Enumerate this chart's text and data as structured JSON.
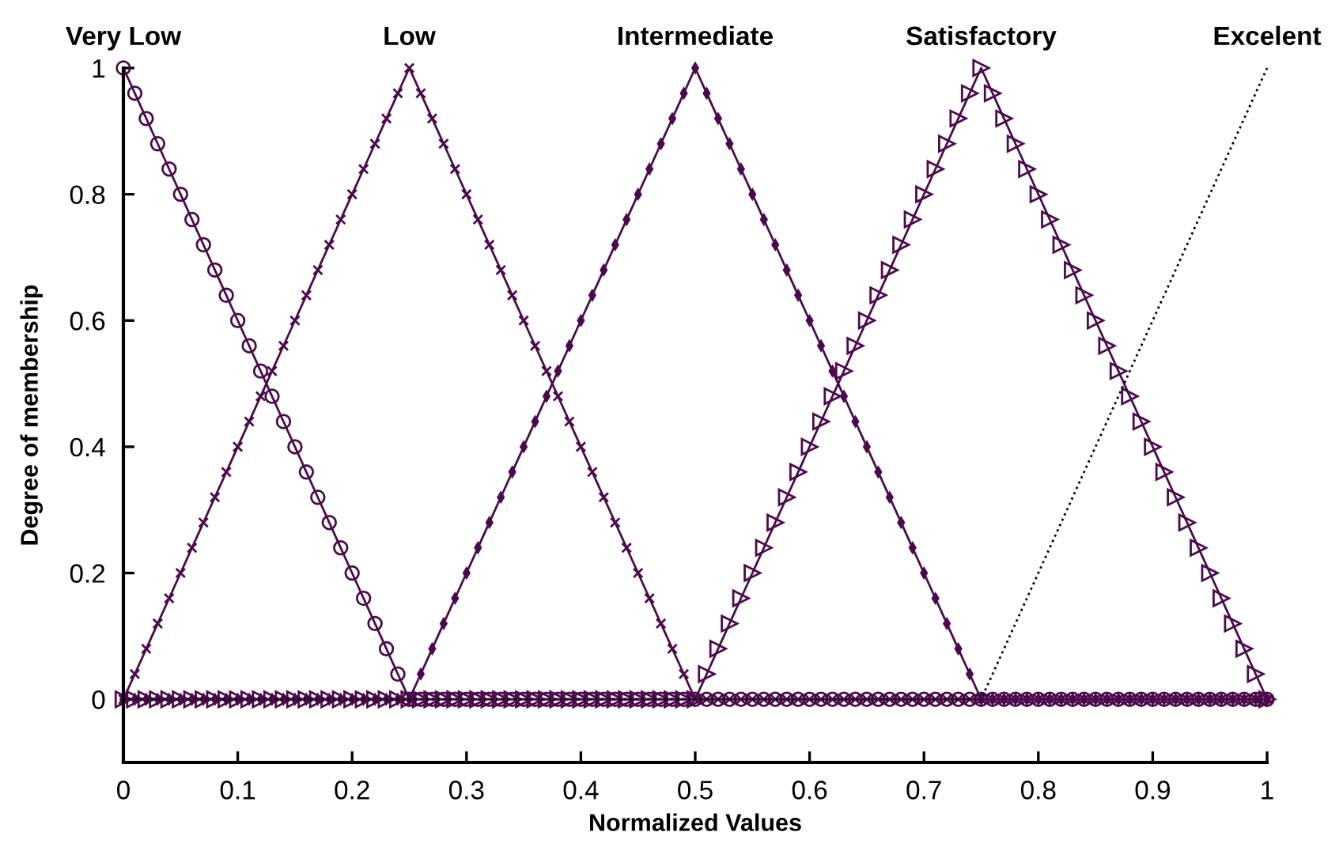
{
  "chart_data": {
    "type": "line",
    "xlabel": "Normalized Values",
    "ylabel": "Degree of membership",
    "x": [
      0,
      0.01,
      0.02,
      0.03,
      0.04,
      0.05,
      0.06,
      0.07,
      0.08,
      0.09,
      0.1,
      0.11,
      0.12,
      0.13,
      0.14,
      0.15,
      0.16,
      0.17,
      0.18,
      0.19,
      0.2,
      0.21,
      0.22,
      0.23,
      0.24,
      0.25,
      0.26,
      0.27,
      0.28,
      0.29,
      0.3,
      0.31,
      0.32,
      0.33,
      0.34,
      0.35,
      0.36,
      0.37,
      0.38,
      0.39,
      0.4,
      0.41,
      0.42,
      0.43,
      0.44,
      0.45,
      0.46,
      0.47,
      0.48,
      0.49,
      0.5,
      0.51,
      0.52,
      0.53,
      0.54,
      0.55,
      0.56,
      0.57,
      0.58,
      0.59,
      0.6,
      0.61,
      0.62,
      0.63,
      0.64,
      0.65,
      0.66,
      0.67,
      0.68,
      0.69,
      0.7,
      0.71,
      0.72,
      0.73,
      0.74,
      0.75,
      0.76,
      0.77,
      0.78,
      0.79,
      0.8,
      0.81,
      0.82,
      0.83,
      0.84,
      0.85,
      0.86,
      0.87,
      0.88,
      0.89,
      0.9,
      0.91,
      0.92,
      0.93,
      0.94,
      0.95,
      0.96,
      0.97,
      0.98,
      0.99,
      1
    ],
    "series": [
      {
        "name": "Very Low",
        "color": "#4b0a4b",
        "marker": "circle",
        "line_style": "solid",
        "values": [
          1,
          0.96,
          0.92,
          0.88,
          0.84,
          0.8,
          0.76,
          0.72,
          0.68,
          0.64,
          0.6,
          0.56,
          0.52,
          0.48,
          0.44,
          0.4,
          0.36,
          0.32,
          0.28,
          0.24,
          0.2,
          0.16,
          0.12,
          0.08,
          0.04,
          0,
          0,
          0,
          0,
          0,
          0,
          0,
          0,
          0,
          0,
          0,
          0,
          0,
          0,
          0,
          0,
          0,
          0,
          0,
          0,
          0,
          0,
          0,
          0,
          0,
          0,
          0,
          0,
          0,
          0,
          0,
          0,
          0,
          0,
          0,
          0,
          0,
          0,
          0,
          0,
          0,
          0,
          0,
          0,
          0,
          0,
          0,
          0,
          0,
          0,
          0,
          0,
          0,
          0,
          0,
          0,
          0,
          0,
          0,
          0,
          0,
          0,
          0,
          0,
          0,
          0,
          0,
          0,
          0,
          0,
          0,
          0,
          0,
          0,
          0,
          0
        ]
      },
      {
        "name": "Low",
        "color": "#4b0a4b",
        "marker": "cross",
        "line_style": "solid",
        "values": [
          0,
          0.04,
          0.08,
          0.12,
          0.16,
          0.2,
          0.24,
          0.28,
          0.32,
          0.36,
          0.4,
          0.44,
          0.48,
          0.52,
          0.56,
          0.6,
          0.64,
          0.68,
          0.72,
          0.76,
          0.8,
          0.84,
          0.88,
          0.92,
          0.96,
          1,
          0.96,
          0.92,
          0.88,
          0.84,
          0.8,
          0.76,
          0.72,
          0.68,
          0.64,
          0.6,
          0.56,
          0.52,
          0.48,
          0.44,
          0.4,
          0.36,
          0.32,
          0.28,
          0.24,
          0.2,
          0.16,
          0.12,
          0.08,
          0.04,
          0,
          0,
          0,
          0,
          0,
          0,
          0,
          0,
          0,
          0,
          0,
          0,
          0,
          0,
          0,
          0,
          0,
          0,
          0,
          0,
          0,
          0,
          0,
          0,
          0,
          0,
          0,
          0,
          0,
          0,
          0,
          0,
          0,
          0,
          0,
          0,
          0,
          0,
          0,
          0,
          0,
          0,
          0,
          0,
          0,
          0,
          0,
          0,
          0,
          0,
          0
        ]
      },
      {
        "name": "Intermediate",
        "color": "#4b0a4b",
        "marker": "diamond",
        "line_style": "solid",
        "values": [
          0,
          0,
          0,
          0,
          0,
          0,
          0,
          0,
          0,
          0,
          0,
          0,
          0,
          0,
          0,
          0,
          0,
          0,
          0,
          0,
          0,
          0,
          0,
          0,
          0,
          0,
          0.04,
          0.08,
          0.12,
          0.16,
          0.2,
          0.24,
          0.28,
          0.32,
          0.36,
          0.4,
          0.44,
          0.48,
          0.52,
          0.56,
          0.6,
          0.64,
          0.68,
          0.72,
          0.76,
          0.8,
          0.84,
          0.88,
          0.92,
          0.96,
          1,
          0.96,
          0.92,
          0.88,
          0.84,
          0.8,
          0.76,
          0.72,
          0.68,
          0.64,
          0.6,
          0.56,
          0.52,
          0.48,
          0.44,
          0.4,
          0.36,
          0.32,
          0.28,
          0.24,
          0.2,
          0.16,
          0.12,
          0.08,
          0.04,
          0,
          0,
          0,
          0,
          0,
          0,
          0,
          0,
          0,
          0,
          0,
          0,
          0,
          0,
          0,
          0,
          0,
          0,
          0,
          0,
          0,
          0,
          0,
          0,
          0,
          0
        ]
      },
      {
        "name": "Satisfactory",
        "color": "#4b0a4b",
        "marker": "triangle",
        "line_style": "solid",
        "values": [
          0,
          0,
          0,
          0,
          0,
          0,
          0,
          0,
          0,
          0,
          0,
          0,
          0,
          0,
          0,
          0,
          0,
          0,
          0,
          0,
          0,
          0,
          0,
          0,
          0,
          0,
          0,
          0,
          0,
          0,
          0,
          0,
          0,
          0,
          0,
          0,
          0,
          0,
          0,
          0,
          0,
          0,
          0,
          0,
          0,
          0,
          0,
          0,
          0,
          0,
          0,
          0.04,
          0.08,
          0.12,
          0.16,
          0.2,
          0.24,
          0.28,
          0.32,
          0.36,
          0.4,
          0.44,
          0.48,
          0.52,
          0.56,
          0.6,
          0.64,
          0.68,
          0.72,
          0.76,
          0.8,
          0.84,
          0.88,
          0.92,
          0.96,
          1,
          0.96,
          0.92,
          0.88,
          0.84,
          0.8,
          0.76,
          0.72,
          0.68,
          0.64,
          0.6,
          0.56,
          0.52,
          0.48,
          0.44,
          0.4,
          0.36,
          0.32,
          0.28,
          0.24,
          0.2,
          0.16,
          0.12,
          0.08,
          0.04,
          0
        ]
      },
      {
        "name": "Excelent",
        "color": "#000000",
        "marker": "none",
        "line_style": "dotted",
        "values": [
          0,
          0,
          0,
          0,
          0,
          0,
          0,
          0,
          0,
          0,
          0,
          0,
          0,
          0,
          0,
          0,
          0,
          0,
          0,
          0,
          0,
          0,
          0,
          0,
          0,
          0,
          0,
          0,
          0,
          0,
          0,
          0,
          0,
          0,
          0,
          0,
          0,
          0,
          0,
          0,
          0,
          0,
          0,
          0,
          0,
          0,
          0,
          0,
          0,
          0,
          0,
          0,
          0,
          0,
          0,
          0,
          0,
          0,
          0,
          0,
          0,
          0,
          0,
          0,
          0,
          0,
          0,
          0,
          0,
          0,
          0,
          0,
          0,
          0,
          0,
          0,
          0.04,
          0.08,
          0.12,
          0.16,
          0.2,
          0.24,
          0.28,
          0.32,
          0.36,
          0.4,
          0.44,
          0.48,
          0.52,
          0.56,
          0.6,
          0.64,
          0.68,
          0.72,
          0.76,
          0.8,
          0.84,
          0.88,
          0.92,
          0.96,
          1
        ]
      }
    ],
    "xlim": [
      0,
      1
    ],
    "ylim": [
      -0.1,
      1
    ],
    "xticks": [
      0,
      0.1,
      0.2,
      0.3,
      0.4,
      0.5,
      0.6,
      0.7,
      0.8,
      0.9,
      1
    ],
    "yticks": [
      0,
      0.2,
      0.4,
      0.6,
      0.8,
      1
    ],
    "grid": false,
    "legend": false
  }
}
